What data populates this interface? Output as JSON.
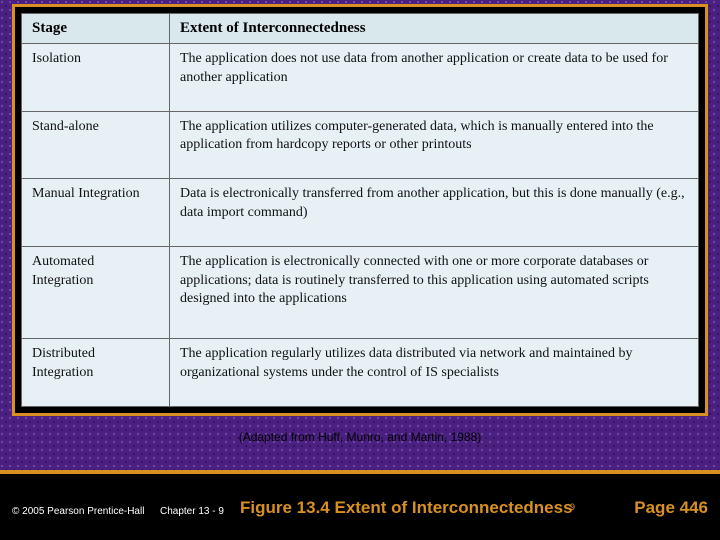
{
  "table": {
    "headers": {
      "stage": "Stage",
      "extent": "Extent of Interconnectedness"
    },
    "rows": [
      {
        "stage": "Isolation",
        "extent": "The application does not use data from another application or create data to be used for another application"
      },
      {
        "stage": "Stand-alone",
        "extent": "The application utilizes computer-generated data, which is manually entered into the application from hardcopy reports or other printouts"
      },
      {
        "stage": "Manual Integration",
        "extent": "Data is electronically transferred from another application, but this is done manually (e.g., data import command)"
      },
      {
        "stage": "Automated Integration",
        "extent": "The application is electronically connected with one or more corporate databases or applications; data is routinely transferred to this application using automated scripts designed into the applications"
      },
      {
        "stage": "Distributed Integration",
        "extent": "The application regularly utilizes data distributed via network and maintained by organizational systems under the control of IS specialists"
      }
    ]
  },
  "citation": "(Adapted from Huff, Munro, and Martin, 1988)",
  "footer": {
    "copyright": "© 2005  Pearson Prentice-Hall",
    "chapter": "Chapter 13 - 9",
    "figure_title": "Figure 13.4   Extent of Interconnectedness",
    "slide_num": "9",
    "page": "Page 446"
  },
  "colors": {
    "accent_orange": "#d89020",
    "table_bg": "#e6f0f5",
    "header_bg": "#d8e8ed",
    "pattern_base": "#4a2080"
  }
}
